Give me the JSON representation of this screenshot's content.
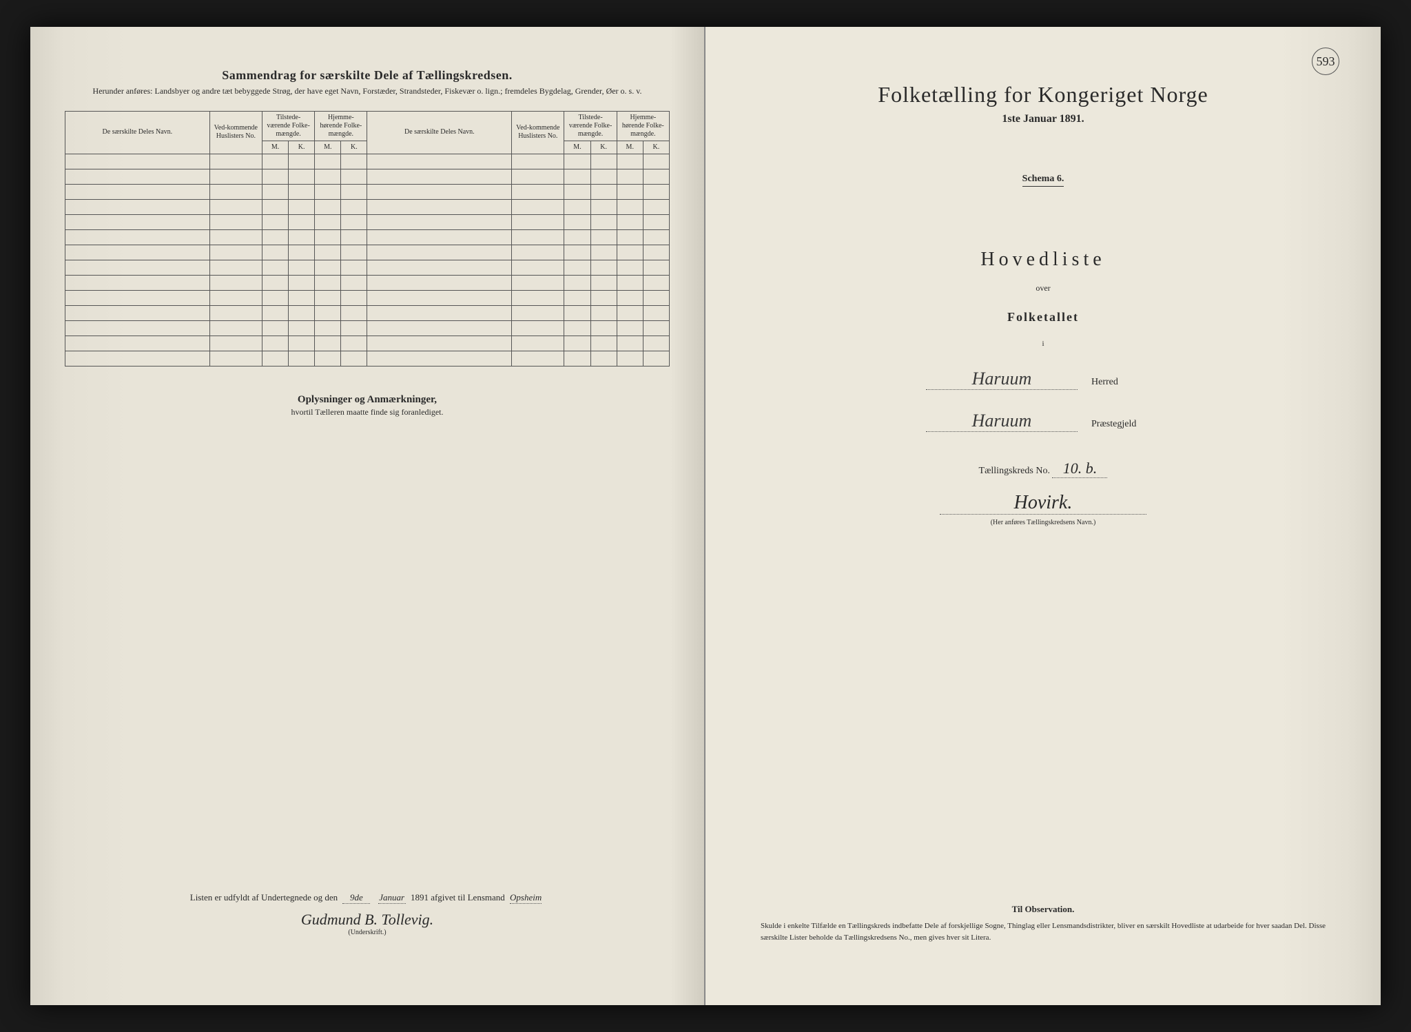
{
  "leftPage": {
    "header": {
      "title": "Sammendrag for særskilte Dele af Tællingskredsen.",
      "subtitle": "Herunder anføres: Landsbyer og andre tæt bebyggede Strøg, der have eget Navn, Forstæder, Strandsteder, Fiskevær o. lign.; fremdeles Bygdelag, Grender, Øer o. s. v."
    },
    "table": {
      "colHeaders": {
        "name": "De særskilte Deles Navn.",
        "huslister": "Ved-kommende Huslisters No.",
        "tilstede": "Tilstede-værende Folke-mængde.",
        "hjemme": "Hjemme-hørende Folke-mængde.",
        "m": "M.",
        "k": "K."
      },
      "rowCount": 14
    },
    "notes": {
      "title": "Oplysninger og Anmærkninger,",
      "subtitle": "hvortil Tælleren maatte finde sig foranlediget."
    },
    "signature": {
      "prefix": "Listen er udfyldt af Undertegnede og den",
      "day": "9de",
      "month": "Januar",
      "year": "1891",
      "suffix": "afgivet til Lensmand",
      "lensmand": "Opsheim",
      "name": "Gudmund B. Tollevig.",
      "underLabel": "(Underskrift.)"
    }
  },
  "rightPage": {
    "pageNumber": "593",
    "title": "Folketælling for Kongeriget Norge",
    "date": "1ste Januar 1891.",
    "schema": "Schema 6.",
    "hovedliste": "Hovedliste",
    "over": "over",
    "folketallet": "Folketallet",
    "i": "i",
    "herred": {
      "value": "Haruum",
      "label": "Herred"
    },
    "praestegjeld": {
      "value": "Haruum",
      "label": "Præstegjeld"
    },
    "kreds": {
      "label": "Tællingskreds No.",
      "no": "10. b.",
      "name": "Hovirk.",
      "hint": "(Her anføres Tællingskredsens Navn.)"
    },
    "observation": {
      "title": "Til Observation.",
      "text": "Skulde i enkelte Tilfælde en Tællingskreds indbefatte Dele af forskjellige Sogne, Thinglag eller Lensmandsdistrikter, bliver en særskilt Hovedliste at udarbeide for hver saadan Del. Disse særskilte Lister beholde da Tællingskredsens No., men gives hver sit Litera."
    }
  }
}
